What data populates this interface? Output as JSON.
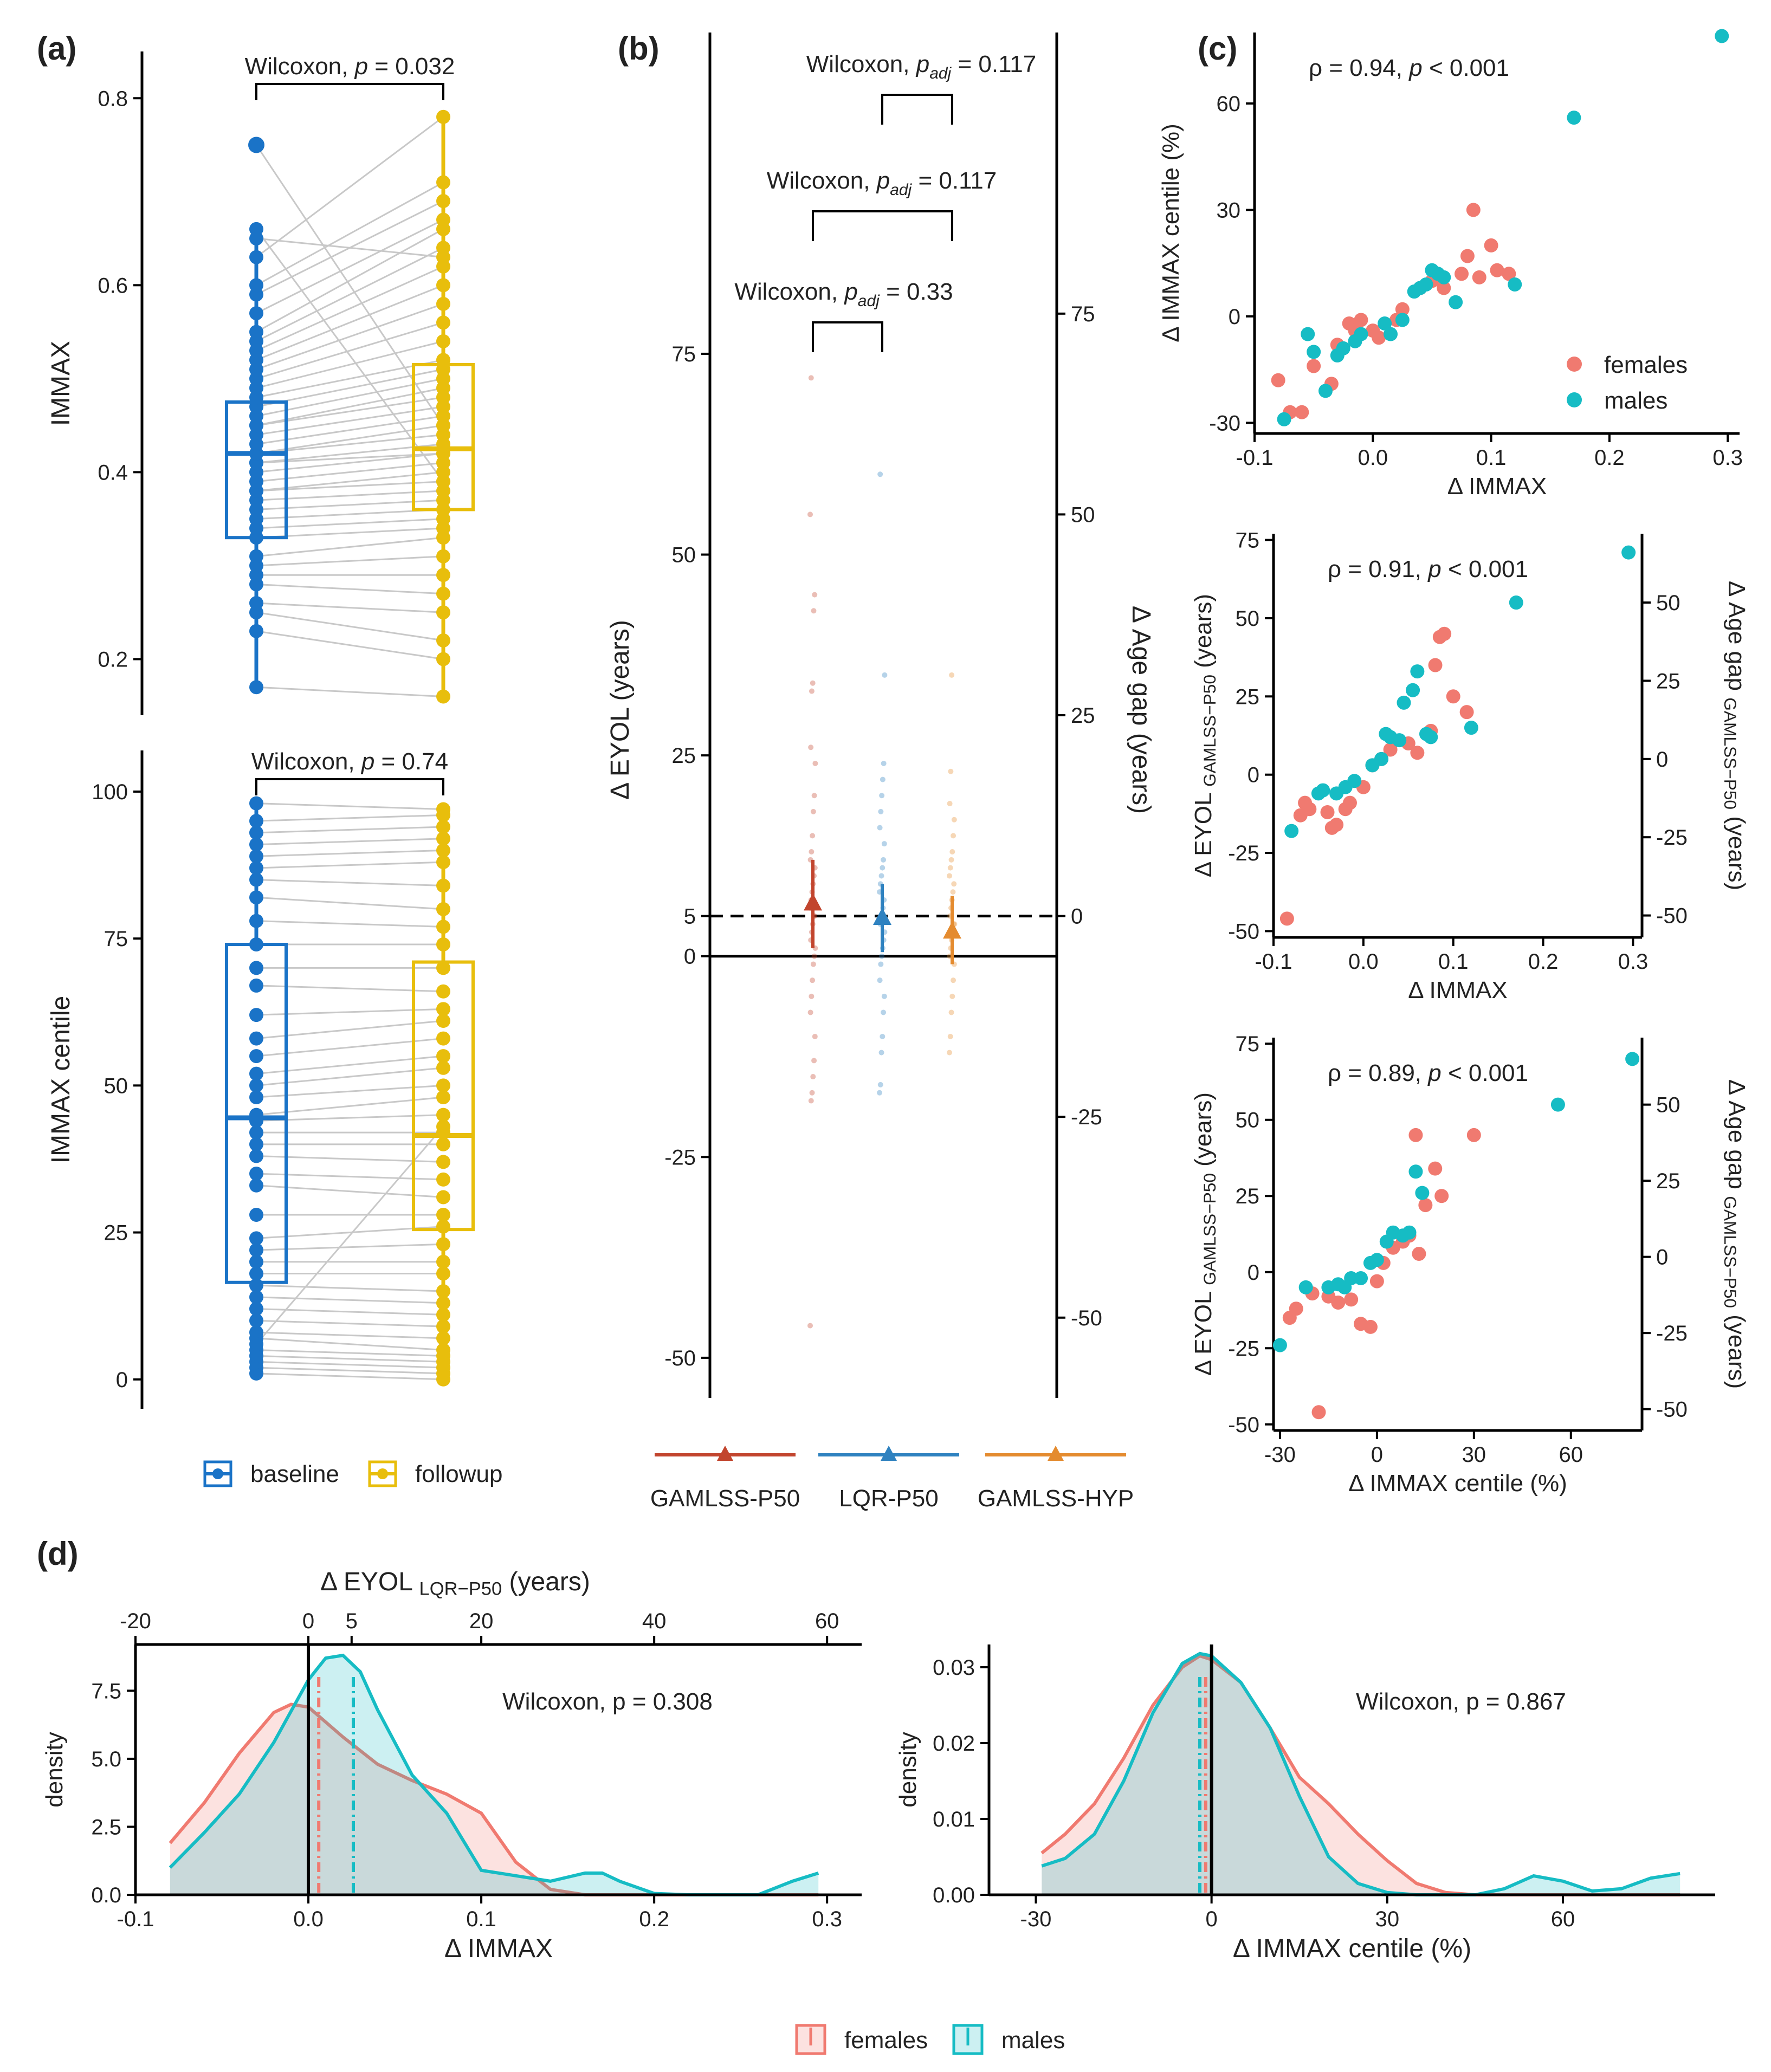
{
  "panels": {
    "a": "(a)",
    "b": "(b)",
    "c": "(c)",
    "d": "(d)"
  },
  "colors": {
    "baseline": "#1a73c7",
    "followup": "#e8be0c",
    "females": "#f07a70",
    "males": "#16bcc4",
    "gamlss_p50": "#c2452e",
    "lqr_p50": "#2f82c0",
    "gamlss_hyp": "#e48b2f",
    "pairline": "#c8c8c8"
  },
  "chart_data": [
    {
      "id": "a_top",
      "type": "box",
      "ylabel": "IMMAX",
      "ylim": [
        0.14,
        0.85
      ],
      "yticks": [
        "0.2",
        "0.4",
        "0.6",
        "0.8"
      ],
      "test": {
        "label": "Wilcoxon,",
        "p": "p",
        "eq": "=",
        "value": "0.032"
      },
      "groups": [
        "baseline",
        "followup"
      ],
      "baseline": [
        0.17,
        0.23,
        0.25,
        0.26,
        0.28,
        0.29,
        0.3,
        0.31,
        0.33,
        0.34,
        0.35,
        0.36,
        0.37,
        0.38,
        0.38,
        0.39,
        0.4,
        0.41,
        0.41,
        0.42,
        0.42,
        0.43,
        0.44,
        0.45,
        0.45,
        0.46,
        0.47,
        0.48,
        0.49,
        0.5,
        0.51,
        0.52,
        0.53,
        0.54,
        0.55,
        0.57,
        0.59,
        0.6,
        0.63,
        0.65,
        0.66,
        0.75
      ],
      "followup": [
        0.16,
        0.2,
        0.22,
        0.25,
        0.27,
        0.29,
        0.31,
        0.33,
        0.34,
        0.35,
        0.36,
        0.37,
        0.38,
        0.39,
        0.4,
        0.41,
        0.42,
        0.42,
        0.43,
        0.44,
        0.45,
        0.46,
        0.47,
        0.48,
        0.49,
        0.5,
        0.51,
        0.52,
        0.54,
        0.56,
        0.58,
        0.6,
        0.62,
        0.64,
        0.66,
        0.67,
        0.69,
        0.71,
        0.78,
        0.63,
        0.39,
        0.45
      ],
      "box_baseline": {
        "q1": 0.33,
        "median": 0.42,
        "q3": 0.475,
        "min": 0.17,
        "max": 0.66,
        "outlier": 0.75
      },
      "box_followup": {
        "q1": 0.36,
        "median": 0.425,
        "q3": 0.515,
        "min": 0.16,
        "max": 0.78
      }
    },
    {
      "id": "a_bottom",
      "type": "box",
      "ylabel": "IMMAX centile",
      "ylim": [
        -5,
        107
      ],
      "yticks": [
        "0",
        "25",
        "50",
        "75",
        "100"
      ],
      "test": {
        "label": "Wilcoxon,",
        "p": "p",
        "eq": "=",
        "value": "0.74"
      },
      "baseline": [
        1,
        2,
        3,
        4,
        5,
        7,
        8,
        10,
        12,
        14,
        16,
        18,
        20,
        22,
        24,
        28,
        33,
        35,
        38,
        40,
        42,
        44,
        45,
        48,
        50,
        52,
        55,
        58,
        62,
        67,
        70,
        74,
        78,
        82,
        85,
        87,
        89,
        91,
        93,
        95,
        98,
        6
      ],
      "followup": [
        0,
        1,
        2,
        3,
        4,
        5,
        7,
        9,
        11,
        13,
        15,
        18,
        20,
        23,
        26,
        28,
        31,
        34,
        37,
        40,
        42,
        45,
        48,
        50,
        53,
        55,
        58,
        61,
        63,
        66,
        70,
        74,
        77,
        80,
        84,
        88,
        90,
        92,
        94,
        96,
        97,
        43
      ],
      "box_baseline": {
        "q1": 16.5,
        "median": 44.5,
        "q3": 74,
        "min": 1,
        "max": 98
      },
      "box_followup": {
        "q1": 25.5,
        "median": 41.5,
        "q3": 71,
        "min": 0,
        "max": 97
      }
    },
    {
      "id": "b",
      "type": "scatter",
      "ylabel": "Δ EYOL (years)",
      "ylabel2": "Δ Age gap (years)",
      "ylim": [
        -55,
        115
      ],
      "yticks_left": [
        "-50",
        "-25",
        "0",
        "5",
        "25",
        "50",
        "75"
      ],
      "yticks_right": [
        "-50",
        "-25",
        "0",
        "25",
        "50",
        "75"
      ],
      "categories": [
        "GAMLSS-P50",
        "LQR-P50",
        "GAMLSS-HYP"
      ],
      "series": [
        {
          "name": "GAMLSS-P50",
          "mean": 6.5,
          "lo": 1.0,
          "hi": 12.0,
          "points": [
            -46,
            -18,
            -17,
            -15,
            -13,
            -10,
            -7,
            -5,
            -3,
            -1,
            0,
            1,
            2,
            3,
            4,
            5,
            5,
            6,
            7,
            8,
            9,
            10,
            11,
            12,
            13,
            15,
            18,
            20,
            24,
            26,
            33,
            34,
            43,
            45,
            55,
            72
          ]
        },
        {
          "name": "LQR-P50",
          "mean": 4.7,
          "lo": 0.5,
          "hi": 9.0,
          "points": [
            -17,
            -16,
            -12,
            -10,
            -7,
            -5,
            -3,
            -1,
            0,
            1,
            2,
            3,
            4,
            5,
            5,
            6,
            7,
            8,
            9,
            10,
            11,
            12,
            14,
            16,
            18,
            20,
            22,
            24,
            35,
            60
          ]
        },
        {
          "name": "GAMLSS-HYP",
          "mean": 3.0,
          "lo": -1.0,
          "hi": 7.5,
          "points": [
            -12,
            -10,
            -7,
            -5,
            -3,
            -1,
            0,
            1,
            2,
            3,
            4,
            4,
            5,
            6,
            7,
            8,
            9,
            10,
            11,
            12,
            13,
            15,
            17,
            19,
            23,
            35
          ]
        }
      ],
      "brackets": [
        {
          "label": "Wilcoxon,",
          "p": "p",
          "sub": "adj",
          "eq": "=",
          "value": "0.117"
        },
        {
          "label": "Wilcoxon,",
          "p": "p",
          "sub": "adj",
          "eq": "=",
          "value": "0.117"
        },
        {
          "label": "Wilcoxon,",
          "p": "p",
          "sub": "adj",
          "eq": "=",
          "value": "0.33"
        }
      ]
    },
    {
      "id": "c1",
      "type": "scatter",
      "xlabel": "Δ IMMAX",
      "ylabel": "Δ IMMAX centile (%)",
      "xlim": [
        -0.1,
        0.31
      ],
      "ylim": [
        -33,
        80
      ],
      "xticks": [
        "-0.1",
        "0.0",
        "0.1",
        "0.2",
        "0.3"
      ],
      "yticks": [
        "-30",
        "0",
        "30",
        "60"
      ],
      "annotation": {
        "rho": "ρ = 0.94,",
        "p": "p",
        "rest": "< 0.001"
      },
      "legend": [
        "females",
        "males"
      ],
      "females": [
        [
          -0.08,
          -18
        ],
        [
          -0.07,
          -27
        ],
        [
          -0.06,
          -27
        ],
        [
          -0.05,
          -14
        ],
        [
          -0.035,
          -19
        ],
        [
          -0.03,
          -8
        ],
        [
          -0.02,
          -2
        ],
        [
          -0.015,
          -4
        ],
        [
          -0.01,
          -1
        ],
        [
          0.0,
          -4
        ],
        [
          0.005,
          -6
        ],
        [
          0.02,
          -1
        ],
        [
          0.025,
          2
        ],
        [
          0.04,
          8
        ],
        [
          0.05,
          10
        ],
        [
          0.06,
          8
        ],
        [
          0.075,
          12
        ],
        [
          0.08,
          17
        ],
        [
          0.085,
          30
        ],
        [
          0.09,
          11
        ],
        [
          0.1,
          20
        ],
        [
          0.105,
          13
        ],
        [
          0.115,
          12
        ]
      ],
      "males": [
        [
          -0.075,
          -29
        ],
        [
          -0.055,
          -5
        ],
        [
          -0.05,
          -10
        ],
        [
          -0.04,
          -21
        ],
        [
          -0.03,
          -11
        ],
        [
          -0.025,
          -9
        ],
        [
          -0.015,
          -7
        ],
        [
          -0.01,
          -5
        ],
        [
          0.01,
          -2
        ],
        [
          0.015,
          -5
        ],
        [
          0.025,
          -1
        ],
        [
          0.035,
          7
        ],
        [
          0.04,
          8
        ],
        [
          0.045,
          9
        ],
        [
          0.05,
          13
        ],
        [
          0.055,
          12
        ],
        [
          0.06,
          11
        ],
        [
          0.07,
          4
        ],
        [
          0.12,
          9
        ],
        [
          0.17,
          56
        ],
        [
          0.295,
          79
        ]
      ]
    },
    {
      "id": "c2",
      "type": "scatter",
      "xlabel": "Δ IMMAX",
      "ylabel": "Δ EYOL",
      "ylabel_sub": "GAMLSS−P50",
      "ylabel_unit": "(years)",
      "ylabel2": "Δ Age gap",
      "ylabel2_sub": "GAMLSS−P50",
      "ylabel2_unit": "(years)",
      "xlim": [
        -0.1,
        0.31
      ],
      "ylim": [
        -52,
        77
      ],
      "xticks": [
        "-0.1",
        "0.0",
        "0.1",
        "0.2",
        "0.3"
      ],
      "yticks": [
        "-50",
        "-25",
        "0",
        "25",
        "50",
        "75"
      ],
      "yticks2": [
        "-50",
        "-25",
        "0",
        "25",
        "50"
      ],
      "annotation": {
        "rho": "ρ = 0.91,",
        "p": "p",
        "rest": "< 0.001"
      },
      "females": [
        [
          -0.085,
          -46
        ],
        [
          -0.07,
          -13
        ],
        [
          -0.065,
          -9
        ],
        [
          -0.06,
          -11
        ],
        [
          -0.04,
          -12
        ],
        [
          -0.035,
          -17
        ],
        [
          -0.03,
          -16
        ],
        [
          -0.02,
          -11
        ],
        [
          -0.015,
          -9
        ],
        [
          0.0,
          -4
        ],
        [
          0.01,
          3
        ],
        [
          0.02,
          5
        ],
        [
          0.03,
          8
        ],
        [
          0.05,
          10
        ],
        [
          0.06,
          7
        ],
        [
          0.075,
          14
        ],
        [
          0.08,
          35
        ],
        [
          0.085,
          44
        ],
        [
          0.09,
          45
        ],
        [
          0.1,
          25
        ],
        [
          0.115,
          20
        ]
      ],
      "males": [
        [
          -0.08,
          -18
        ],
        [
          -0.05,
          -6
        ],
        [
          -0.045,
          -5
        ],
        [
          -0.03,
          -6
        ],
        [
          -0.02,
          -4
        ],
        [
          -0.01,
          -2
        ],
        [
          0.01,
          3
        ],
        [
          0.02,
          5
        ],
        [
          0.025,
          13
        ],
        [
          0.03,
          12
        ],
        [
          0.04,
          11
        ],
        [
          0.045,
          23
        ],
        [
          0.055,
          27
        ],
        [
          0.06,
          33
        ],
        [
          0.07,
          13
        ],
        [
          0.075,
          12
        ],
        [
          0.12,
          15
        ],
        [
          0.17,
          55
        ],
        [
          0.295,
          71
        ]
      ]
    },
    {
      "id": "c3",
      "type": "scatter",
      "xlabel": "Δ IMMAX centile (%)",
      "ylabel": "Δ EYOL",
      "ylabel_sub": "GAMLSS−P50",
      "ylabel_unit": "(years)",
      "ylabel2": "Δ Age gap",
      "ylabel2_sub": "GAMLSS−P50",
      "ylabel2_unit": "(years)",
      "xlim": [
        -32,
        82
      ],
      "ylim": [
        -52,
        77
      ],
      "xticks": [
        "-30",
        "0",
        "30",
        "60"
      ],
      "yticks": [
        "-50",
        "-25",
        "0",
        "25",
        "50",
        "75"
      ],
      "yticks2": [
        "-50",
        "-25",
        "0",
        "25",
        "50"
      ],
      "annotation": {
        "rho": "ρ = 0.89,",
        "p": "p",
        "rest": "< 0.001"
      },
      "females": [
        [
          -27,
          -15
        ],
        [
          -25,
          -12
        ],
        [
          -20,
          -7
        ],
        [
          -18,
          -46
        ],
        [
          -15,
          -8
        ],
        [
          -12,
          -10
        ],
        [
          -8,
          -9
        ],
        [
          -5,
          -17
        ],
        [
          -2,
          -18
        ],
        [
          0,
          -3
        ],
        [
          2,
          3
        ],
        [
          5,
          8
        ],
        [
          8,
          10
        ],
        [
          10,
          12
        ],
        [
          12,
          45
        ],
        [
          15,
          22
        ],
        [
          18,
          34
        ],
        [
          20,
          25
        ],
        [
          30,
          45
        ],
        [
          13,
          6
        ]
      ],
      "males": [
        [
          -30,
          -24
        ],
        [
          -22,
          -5
        ],
        [
          -15,
          -5
        ],
        [
          -12,
          -4
        ],
        [
          -10,
          -5
        ],
        [
          -8,
          -2
        ],
        [
          -5,
          -2
        ],
        [
          -2,
          3
        ],
        [
          0,
          4
        ],
        [
          3,
          10
        ],
        [
          5,
          13
        ],
        [
          8,
          12
        ],
        [
          10,
          13
        ],
        [
          12,
          33
        ],
        [
          14,
          26
        ],
        [
          56,
          55
        ],
        [
          79,
          70
        ]
      ]
    },
    {
      "id": "d1",
      "type": "area",
      "xlabel": "Δ IMMAX",
      "ylabel": "density",
      "top_axis_label": "Δ EYOL",
      "top_axis_sub": "LQR−P50",
      "top_axis_unit": "(years)",
      "xlim": [
        -0.1,
        0.32
      ],
      "ylim": [
        0,
        9.2
      ],
      "xticks": [
        "-0.1",
        "0.0",
        "0.1",
        "0.2",
        "0.3"
      ],
      "xticks_top": [
        "-20",
        "0",
        "5",
        "20",
        "40",
        "60"
      ],
      "yticks": [
        "0.0",
        "2.5",
        "5.0",
        "7.5"
      ],
      "test": "Wilcoxon, p = 0.308",
      "median_females": 0.006,
      "median_males": 0.026,
      "females_x": [
        -0.08,
        -0.06,
        -0.04,
        -0.02,
        -0.01,
        0.0,
        0.02,
        0.04,
        0.06,
        0.08,
        0.1,
        0.12,
        0.14,
        0.16,
        0.18,
        0.2,
        0.22,
        0.24,
        0.26,
        0.28,
        0.295
      ],
      "females_y": [
        1.9,
        3.4,
        5.2,
        6.7,
        7.0,
        6.9,
        5.8,
        4.8,
        4.2,
        3.7,
        3.0,
        1.2,
        0.2,
        0.0,
        0.0,
        0.0,
        0.0,
        0.0,
        0.0,
        0.0,
        0.0
      ],
      "males_x": [
        -0.08,
        -0.06,
        -0.04,
        -0.02,
        0.0,
        0.01,
        0.02,
        0.03,
        0.04,
        0.06,
        0.08,
        0.1,
        0.12,
        0.14,
        0.16,
        0.17,
        0.18,
        0.2,
        0.22,
        0.24,
        0.26,
        0.28,
        0.295
      ],
      "males_y": [
        1.0,
        2.3,
        3.7,
        5.6,
        7.9,
        8.7,
        8.8,
        8.2,
        6.8,
        4.4,
        3.0,
        0.9,
        0.7,
        0.5,
        0.8,
        0.8,
        0.5,
        0.05,
        0.0,
        0.0,
        0.0,
        0.5,
        0.8
      ]
    },
    {
      "id": "d2",
      "type": "area",
      "xlabel": "Δ IMMAX centile (%)",
      "ylabel": "density",
      "xlim": [
        -38,
        86
      ],
      "ylim": [
        0,
        0.033
      ],
      "xticks": [
        "-30",
        "0",
        "30",
        "60"
      ],
      "yticks": [
        "0.00",
        "0.01",
        "0.02",
        "0.03"
      ],
      "test": "Wilcoxon, p = 0.867",
      "median_females": -1.0,
      "median_males": -2.0,
      "females_x": [
        -29,
        -25,
        -20,
        -15,
        -10,
        -5,
        -2,
        0,
        5,
        10,
        15,
        20,
        25,
        30,
        35,
        40,
        45,
        50,
        60,
        70,
        80
      ],
      "females_y": [
        0.0055,
        0.008,
        0.012,
        0.018,
        0.025,
        0.03,
        0.0315,
        0.031,
        0.028,
        0.022,
        0.0155,
        0.012,
        0.008,
        0.0045,
        0.0015,
        0.0003,
        0.0,
        0.0,
        0.0,
        0.0,
        0.0
      ],
      "males_x": [
        -29,
        -25,
        -20,
        -15,
        -10,
        -5,
        -2,
        0,
        5,
        10,
        15,
        20,
        25,
        30,
        35,
        40,
        45,
        50,
        55,
        60,
        65,
        70,
        75,
        80
      ],
      "males_y": [
        0.0038,
        0.0048,
        0.008,
        0.015,
        0.024,
        0.0305,
        0.0318,
        0.0315,
        0.028,
        0.022,
        0.013,
        0.005,
        0.0015,
        0.0003,
        0.0,
        0.0,
        0.0,
        0.0008,
        0.0025,
        0.0018,
        0.0005,
        0.0008,
        0.0022,
        0.0028
      ]
    }
  ],
  "legend_a": {
    "baseline": "baseline",
    "followup": "followup"
  },
  "legend_d": {
    "females": "females",
    "males": "males"
  }
}
